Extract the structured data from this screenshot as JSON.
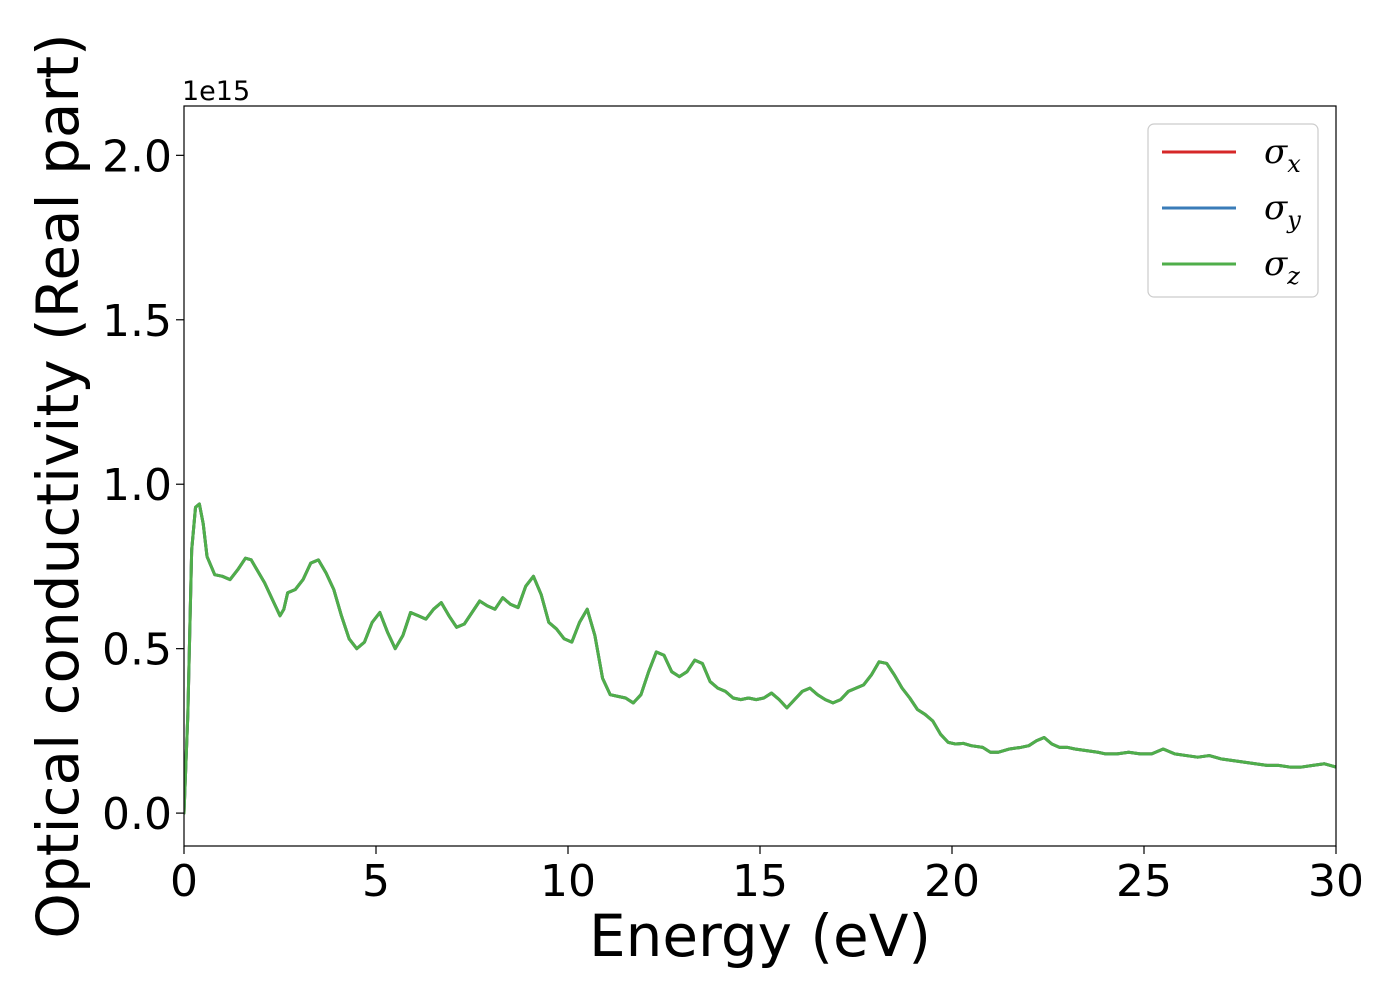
{
  "chart_data": {
    "type": "line",
    "xlabel": "Energy (eV)",
    "ylabel": "Optical conductivity (Real part)",
    "y_offset_label": "1e15",
    "xlim": [
      0,
      30
    ],
    "ylim": [
      -0.1,
      2.15
    ],
    "x_ticks": [
      0,
      5,
      10,
      15,
      20,
      25,
      30
    ],
    "x_tick_labels": [
      "0",
      "5",
      "10",
      "15",
      "20",
      "25",
      "30"
    ],
    "y_ticks": [
      0.0,
      0.5,
      1.0,
      1.5,
      2.0
    ],
    "y_tick_labels": [
      "0.0",
      "0.5",
      "1.0",
      "1.5",
      "2.0"
    ],
    "grid": false,
    "legend_position": "top-right",
    "series": [
      {
        "name": "σx",
        "sym": "σ",
        "sub": "x",
        "color": "#d62728",
        "curve": "shared"
      },
      {
        "name": "σy",
        "sym": "σ",
        "sub": "y",
        "color": "#3a7cb8",
        "curve": "shared"
      },
      {
        "name": "σz",
        "sym": "σ",
        "sub": "z",
        "color": "#4fae4a",
        "curve": "shared"
      }
    ],
    "shared_curve": {
      "x": [
        0.0,
        0.1,
        0.2,
        0.3,
        0.4,
        0.5,
        0.6,
        0.8,
        1.0,
        1.2,
        1.4,
        1.6,
        1.75,
        1.9,
        2.1,
        2.3,
        2.5,
        2.6,
        2.7,
        2.9,
        3.1,
        3.3,
        3.5,
        3.7,
        3.9,
        4.1,
        4.3,
        4.5,
        4.7,
        4.9,
        5.1,
        5.3,
        5.5,
        5.7,
        5.9,
        6.1,
        6.3,
        6.5,
        6.7,
        6.9,
        7.1,
        7.3,
        7.5,
        7.7,
        7.9,
        8.1,
        8.3,
        8.5,
        8.7,
        8.9,
        9.1,
        9.3,
        9.5,
        9.7,
        9.9,
        10.1,
        10.3,
        10.5,
        10.7,
        10.9,
        11.1,
        11.3,
        11.5,
        11.7,
        11.9,
        12.1,
        12.3,
        12.5,
        12.7,
        12.9,
        13.1,
        13.3,
        13.5,
        13.7,
        13.9,
        14.1,
        14.3,
        14.5,
        14.7,
        14.9,
        15.1,
        15.3,
        15.5,
        15.7,
        15.9,
        16.1,
        16.3,
        16.5,
        16.7,
        16.9,
        17.1,
        17.3,
        17.5,
        17.7,
        17.9,
        18.1,
        18.3,
        18.5,
        18.7,
        18.9,
        19.1,
        19.3,
        19.5,
        19.7,
        19.9,
        20.1,
        20.3,
        20.5,
        20.8,
        21.0,
        21.2,
        21.5,
        21.8,
        22.0,
        22.2,
        22.4,
        22.6,
        22.8,
        23.0,
        23.2,
        23.5,
        23.8,
        24.0,
        24.3,
        24.6,
        24.9,
        25.2,
        25.5,
        25.8,
        26.1,
        26.4,
        26.7,
        27.0,
        27.3,
        27.6,
        27.9,
        28.2,
        28.5,
        28.8,
        29.1,
        29.4,
        29.7,
        30.0
      ],
      "y": [
        0.0,
        0.3,
        0.8,
        0.93,
        0.94,
        0.88,
        0.78,
        0.725,
        0.72,
        0.71,
        0.74,
        0.775,
        0.77,
        0.74,
        0.7,
        0.65,
        0.6,
        0.62,
        0.67,
        0.68,
        0.71,
        0.76,
        0.77,
        0.73,
        0.68,
        0.6,
        0.53,
        0.5,
        0.52,
        0.58,
        0.61,
        0.55,
        0.5,
        0.54,
        0.61,
        0.6,
        0.59,
        0.62,
        0.64,
        0.6,
        0.565,
        0.575,
        0.61,
        0.645,
        0.63,
        0.62,
        0.655,
        0.635,
        0.625,
        0.69,
        0.72,
        0.665,
        0.58,
        0.56,
        0.53,
        0.52,
        0.58,
        0.62,
        0.54,
        0.41,
        0.36,
        0.355,
        0.35,
        0.335,
        0.36,
        0.43,
        0.49,
        0.48,
        0.43,
        0.415,
        0.43,
        0.465,
        0.455,
        0.4,
        0.38,
        0.37,
        0.35,
        0.345,
        0.35,
        0.345,
        0.35,
        0.365,
        0.345,
        0.32,
        0.345,
        0.37,
        0.38,
        0.36,
        0.345,
        0.335,
        0.345,
        0.37,
        0.38,
        0.39,
        0.42,
        0.46,
        0.455,
        0.42,
        0.38,
        0.35,
        0.315,
        0.3,
        0.28,
        0.24,
        0.215,
        0.21,
        0.212,
        0.205,
        0.2,
        0.185,
        0.185,
        0.195,
        0.2,
        0.205,
        0.22,
        0.23,
        0.21,
        0.2,
        0.2,
        0.195,
        0.19,
        0.185,
        0.18,
        0.18,
        0.185,
        0.18,
        0.18,
        0.195,
        0.18,
        0.175,
        0.17,
        0.175,
        0.165,
        0.16,
        0.155,
        0.15,
        0.145,
        0.145,
        0.14,
        0.14,
        0.145,
        0.15,
        0.14
      ]
    }
  }
}
